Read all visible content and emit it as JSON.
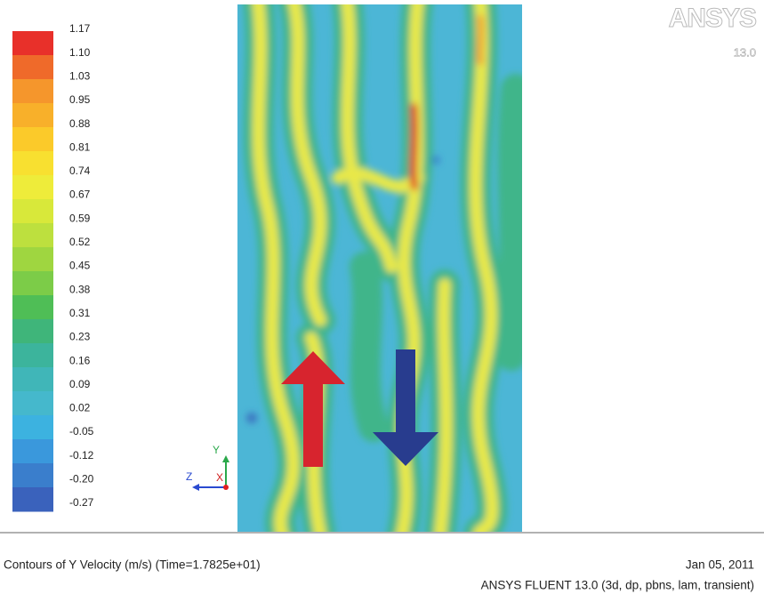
{
  "legend": {
    "labels": [
      "1.17",
      "1.10",
      "1.03",
      "0.95",
      "0.88",
      "0.81",
      "0.74",
      "0.67",
      "0.59",
      "0.52",
      "0.45",
      "0.38",
      "0.31",
      "0.23",
      "0.16",
      "0.09",
      "0.02",
      "-0.05",
      "-0.12",
      "-0.20",
      "-0.27"
    ]
  },
  "logo": {
    "name": "ANSYS",
    "version": "13.0"
  },
  "axes": {
    "y": "Y",
    "z": "Z",
    "x": "X"
  },
  "footer": {
    "title": "Contours of Y Velocity (m/s)  (Time=1.7825e+01)",
    "date": "Jan 05, 2011",
    "product": "ANSYS FLUENT 13.0 (3d, dp, pbns, lam, transient)"
  }
}
